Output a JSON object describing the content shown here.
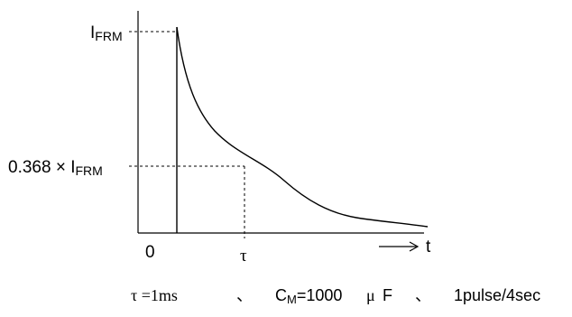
{
  "diagram": {
    "y_labels": {
      "peak_main": "I",
      "peak_sub": "FRM",
      "decay_prefix": "0.368 × I",
      "decay_sub": "FRM"
    },
    "x_labels": {
      "origin": "0",
      "tau": "τ",
      "t": "t"
    },
    "caption": {
      "tau_part": "τ =1ms",
      "sep1": "、",
      "cm_main": "C",
      "cm_sub": "M",
      "cm_value": "=1000",
      "cm_unit_mu": "μ",
      "cm_unit_f": "F",
      "sep2": "、",
      "pulse": "1pulse/4sec"
    }
  }
}
